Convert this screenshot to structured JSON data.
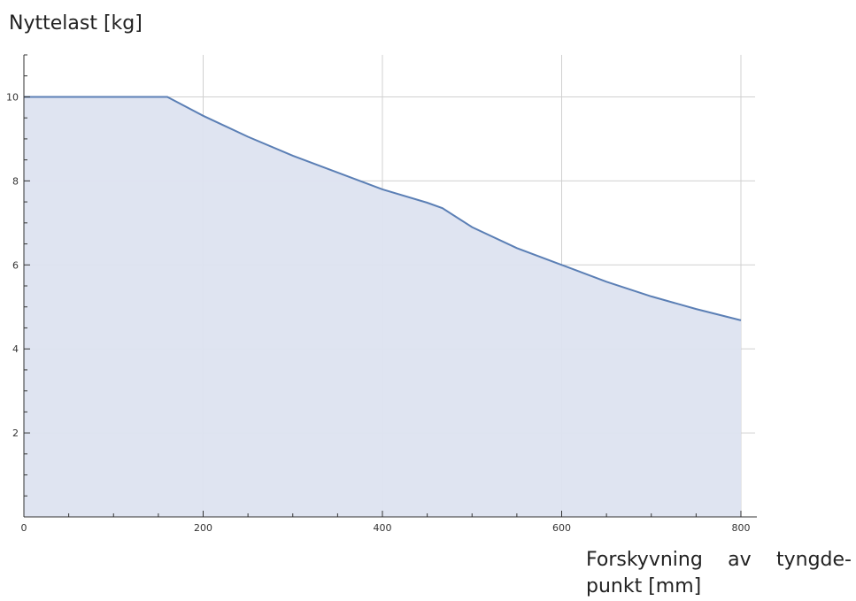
{
  "chart_data": {
    "type": "area",
    "ylabel": "Nyttelast [kg]",
    "xlabel": "Forskyvning av tyngde- punkt [mm]",
    "xlim": [
      0,
      800
    ],
    "ylim": [
      0,
      11
    ],
    "x_ticks": [
      0,
      200,
      400,
      600,
      800
    ],
    "y_ticks": [
      2,
      4,
      6,
      8,
      10
    ],
    "grid": true,
    "line_color": "#5b7fb5",
    "fill_color": "#dde3f0",
    "points": [
      {
        "x": 0,
        "y": 10
      },
      {
        "x": 160,
        "y": 10
      },
      {
        "x": 200,
        "y": 9.55
      },
      {
        "x": 250,
        "y": 9.05
      },
      {
        "x": 300,
        "y": 8.6
      },
      {
        "x": 350,
        "y": 8.2
      },
      {
        "x": 400,
        "y": 7.8
      },
      {
        "x": 450,
        "y": 7.48
      },
      {
        "x": 467,
        "y": 7.35
      },
      {
        "x": 500,
        "y": 6.9
      },
      {
        "x": 550,
        "y": 6.4
      },
      {
        "x": 600,
        "y": 6.0
      },
      {
        "x": 650,
        "y": 5.6
      },
      {
        "x": 700,
        "y": 5.25
      },
      {
        "x": 750,
        "y": 4.95
      },
      {
        "x": 800,
        "y": 4.68
      }
    ]
  }
}
